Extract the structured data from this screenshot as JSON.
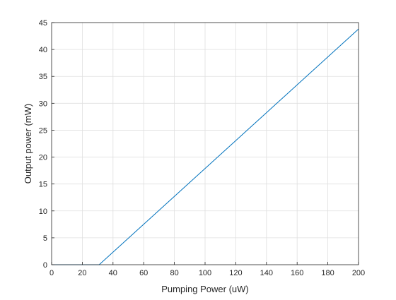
{
  "chart_data": {
    "type": "line",
    "title": "",
    "xlabel": "Pumping Power (uW)",
    "ylabel": "Output power (mW)",
    "xlim": [
      0,
      200
    ],
    "ylim": [
      0,
      45
    ],
    "xticks": [
      0,
      20,
      40,
      60,
      80,
      100,
      120,
      140,
      160,
      180,
      200
    ],
    "yticks": [
      0,
      5,
      10,
      15,
      20,
      25,
      30,
      35,
      40,
      45
    ],
    "grid": true,
    "legend": "none",
    "series": [
      {
        "color": "#0072BD",
        "x": [
          0,
          31,
          200
        ],
        "y": [
          0,
          0,
          43.8
        ]
      }
    ]
  }
}
